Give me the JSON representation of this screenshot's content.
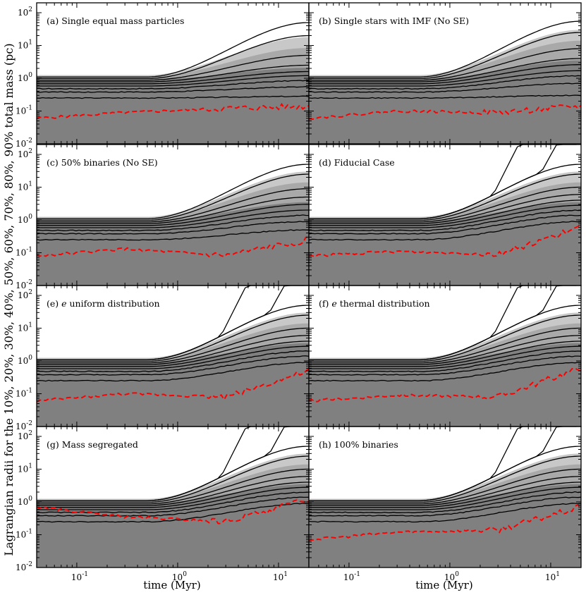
{
  "figure": {
    "ylabel": "Lagrangian radii for the 10%, 20%, 30%, 40%, 50%, 60%, 70%, 80%, 90% total mass (pc)",
    "xlabel": "time (Myr)"
  },
  "chart_data": {
    "type": "line",
    "x_scale": "log",
    "y_scale": "log",
    "xlim": [
      0.04,
      20
    ],
    "ylim": [
      0.01,
      200
    ],
    "x_ticks": [
      "10^-1",
      "10^0",
      "10^1"
    ],
    "y_ticks": [
      "10^-2",
      "10^-1",
      "10^0",
      "10^1",
      "10^2"
    ],
    "x_tick_values": [
      0.1,
      1,
      10
    ],
    "y_tick_values": [
      0.01,
      0.1,
      1,
      10,
      100
    ],
    "grid": false,
    "colors": {
      "lagrangian_lines": "#000000",
      "core_radius": "#ff0000",
      "shade_outer": "#c8c8c8",
      "shade_mid": "#a9a9a9",
      "shade_inner": "#808080"
    },
    "panels": [
      {
        "label": "(a)",
        "title": "Single equal mass particles",
        "escape_lines": [],
        "shade_top": 6,
        "core": [
          0.06,
          0.09,
          0.12,
          0.14
        ],
        "final_radii": [
          0.28,
          0.55,
          0.85,
          1.2,
          1.6,
          2.5,
          5,
          20,
          50
        ]
      },
      {
        "label": "(b)",
        "title": "Single stars with IMF (No SE)",
        "escape_lines": [],
        "shade_top": 10,
        "core": [
          0.06,
          0.1,
          0.09,
          0.14
        ],
        "final_radii": [
          0.3,
          0.7,
          1.2,
          1.7,
          2.6,
          4,
          8,
          25,
          55
        ]
      },
      {
        "label": "(c)",
        "title": "50% binaries (No SE)",
        "escape_lines": [],
        "shade_top": 10,
        "core": [
          0.08,
          0.13,
          0.08,
          0.25
        ],
        "final_radii": [
          0.5,
          0.9,
          1.4,
          2,
          3,
          5,
          9,
          25,
          50
        ]
      },
      {
        "label": "(d)",
        "title": "Fiducial Case",
        "escape_lines": [
          6,
          18
        ],
        "shade_top": 10,
        "core": [
          0.08,
          0.11,
          0.09,
          0.6
        ],
        "final_radii": [
          0.9,
          1.4,
          2,
          2.8,
          4,
          6,
          10,
          25,
          50
        ]
      },
      {
        "label": "(e)",
        "title": "uniform distribution",
        "title_prefix": "e",
        "escape_lines": [
          6,
          18
        ],
        "shade_top": 10,
        "core": [
          0.06,
          0.1,
          0.08,
          0.5
        ],
        "final_radii": [
          0.9,
          1.4,
          2,
          2.8,
          4,
          6,
          10,
          25,
          50
        ]
      },
      {
        "label": "(f)",
        "title": "thermal distribution",
        "title_prefix": "e",
        "escape_lines": [
          6,
          18
        ],
        "shade_top": 10,
        "core": [
          0.06,
          0.09,
          0.08,
          0.6
        ],
        "final_radii": [
          0.9,
          1.4,
          2,
          2.8,
          4,
          6,
          10,
          25,
          50
        ]
      },
      {
        "label": "(g)",
        "title": "Mass segregated",
        "escape_lines": [
          6,
          18
        ],
        "shade_top": 10,
        "core": [
          0.7,
          0.35,
          0.25,
          1.2
        ],
        "final_radii": [
          0.9,
          1.4,
          2,
          2.8,
          4,
          6,
          10,
          25,
          50
        ]
      },
      {
        "label": "(h)",
        "title": "100% binaries",
        "escape_lines": [
          6,
          18
        ],
        "shade_top": 10,
        "core": [
          0.07,
          0.12,
          0.14,
          0.7
        ],
        "final_radii": [
          0.9,
          1.4,
          2,
          2.8,
          4,
          6,
          10,
          25,
          50
        ]
      }
    ]
  }
}
